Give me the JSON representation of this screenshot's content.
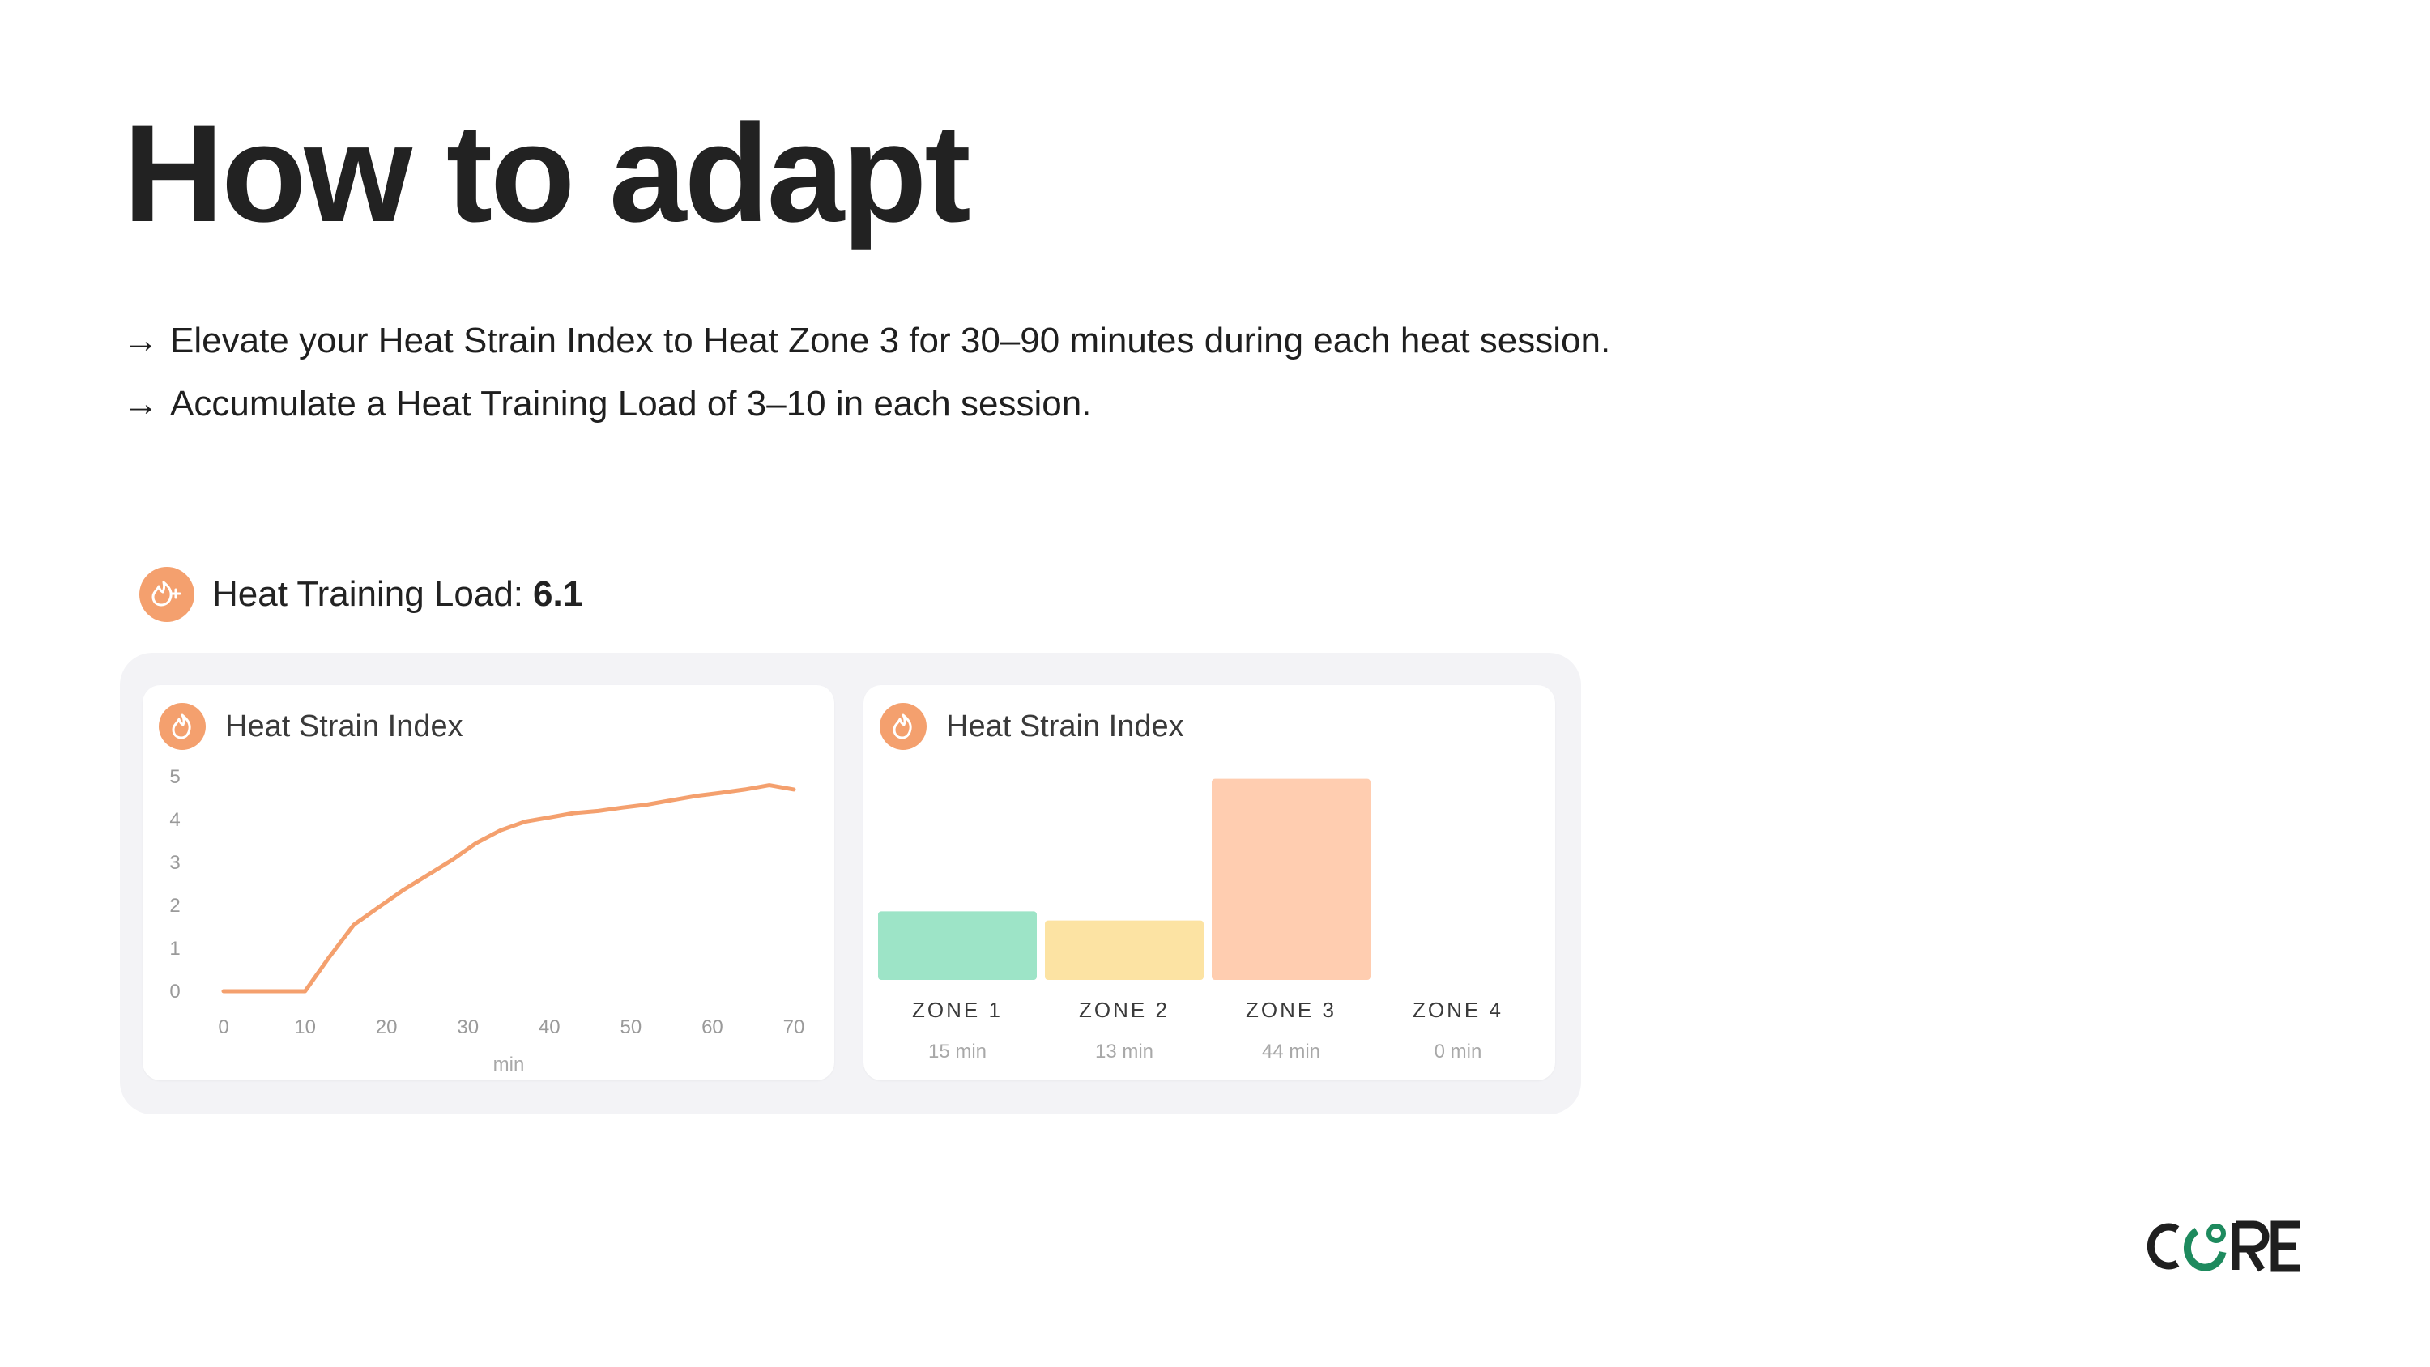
{
  "title": "How to adapt",
  "bullets": [
    {
      "arrow": "→",
      "text": "Elevate your Heat Strain Index to Heat Zone 3 for 30–90 minutes during each heat session."
    },
    {
      "arrow": "→",
      "text": "Accumulate a Heat Training Load of 3–10 in each session."
    }
  ],
  "heat_training_load": {
    "label": "Heat Training Load:",
    "value": "6.1",
    "icon": "flame-plus-icon"
  },
  "colors": {
    "accent": "#F4A06E",
    "line": "#F4A06E",
    "zone1": "#9DE4C7",
    "zone2": "#FCE3A3",
    "zone3": "#FFCDB0",
    "zone4": "#FFCDB0",
    "panel_bg": "#F3F3F6",
    "logo_dark": "#1F1F1F",
    "logo_green": "#1E8A5E"
  },
  "logo": {
    "text": "CORE"
  },
  "chart_data": [
    {
      "type": "line",
      "title": "Heat Strain Index",
      "icon": "flame-icon",
      "xlabel": "min",
      "ylabel": "",
      "xlim": [
        0,
        70
      ],
      "ylim": [
        0,
        5
      ],
      "x_ticks": [
        "0",
        "10",
        "20",
        "30",
        "40",
        "50",
        "60",
        "70"
      ],
      "y_ticks": [
        "0",
        "1",
        "2",
        "3",
        "4",
        "5"
      ],
      "grid": false,
      "series": [
        {
          "x": [
            0,
            10,
            13,
            16,
            19,
            22,
            25,
            28,
            31,
            34,
            37,
            40,
            43,
            46,
            49,
            52,
            55,
            58,
            61,
            64,
            67,
            70
          ],
          "y": [
            0,
            0,
            0.8,
            1.55,
            1.95,
            2.35,
            2.7,
            3.05,
            3.45,
            3.75,
            3.95,
            4.05,
            4.15,
            4.2,
            4.28,
            4.35,
            4.45,
            4.55,
            4.62,
            4.7,
            4.8,
            4.7
          ]
        }
      ]
    },
    {
      "type": "bar",
      "title": "Heat Strain Index",
      "icon": "flame-icon",
      "categories": [
        "ZONE 1",
        "ZONE 2",
        "ZONE 3",
        "ZONE 4"
      ],
      "values": [
        15,
        13,
        44,
        0
      ],
      "value_labels": [
        "15 min",
        "13 min",
        "44 min",
        "0 min"
      ],
      "ylim": [
        0,
        45
      ],
      "grid": false
    }
  ]
}
